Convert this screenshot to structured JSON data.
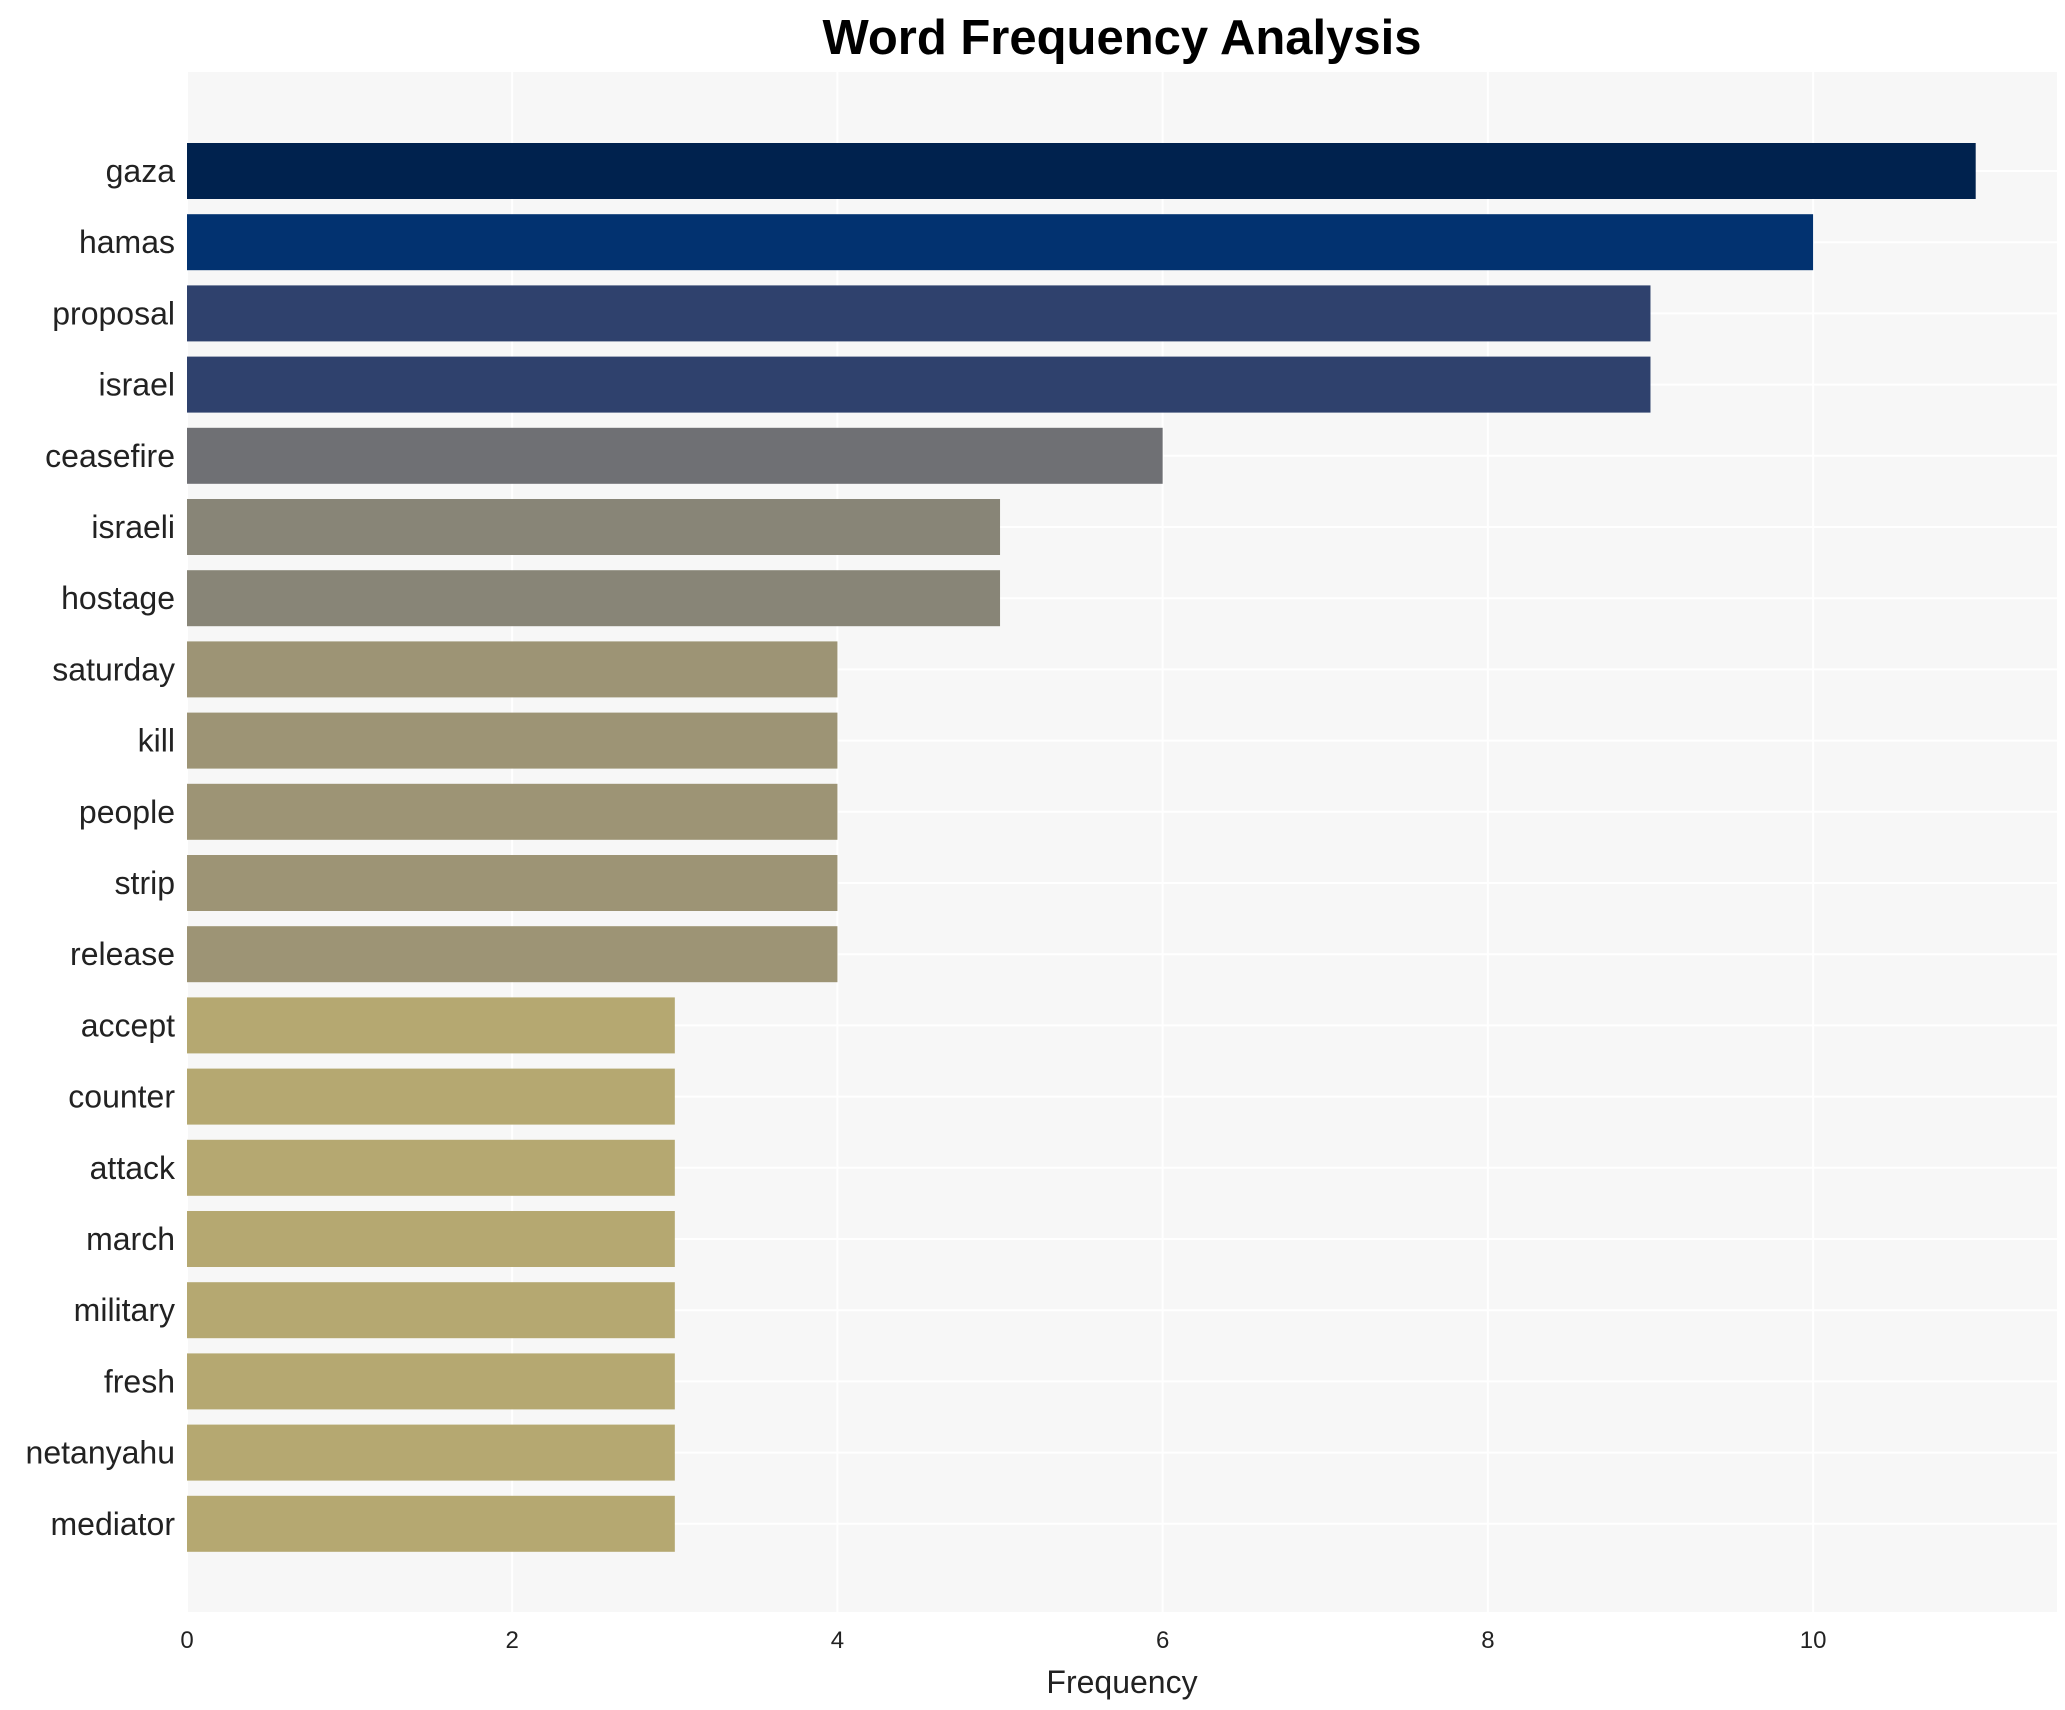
{
  "chart_data": {
    "type": "bar",
    "orientation": "horizontal",
    "title": "Word Frequency Analysis",
    "xlabel": "Frequency",
    "ylabel": "",
    "xlim": [
      0,
      11.5
    ],
    "x_ticks": [
      0,
      2,
      4,
      6,
      8,
      10
    ],
    "grid": true,
    "categories": [
      "gaza",
      "hamas",
      "proposal",
      "israel",
      "ceasefire",
      "israeli",
      "hostage",
      "saturday",
      "kill",
      "people",
      "strip",
      "release",
      "accept",
      "counter",
      "attack",
      "march",
      "military",
      "fresh",
      "netanyahu",
      "mediator"
    ],
    "values": [
      11,
      10,
      9,
      9,
      6,
      5,
      5,
      4,
      4,
      4,
      4,
      4,
      3,
      3,
      3,
      3,
      3,
      3,
      3,
      3
    ],
    "bar_colors": [
      "#00224e",
      "#023270",
      "#2f416d",
      "#2f416d",
      "#6f7074",
      "#888577",
      "#888577",
      "#9d9475",
      "#9d9475",
      "#9d9475",
      "#9d9475",
      "#9d9475",
      "#b5a871",
      "#b5a871",
      "#b5a871",
      "#b5a871",
      "#b5a871",
      "#b5a871",
      "#b5a871",
      "#b5a871"
    ],
    "plot_background": "#f7f7f7",
    "grid_color": "#ffffff"
  }
}
